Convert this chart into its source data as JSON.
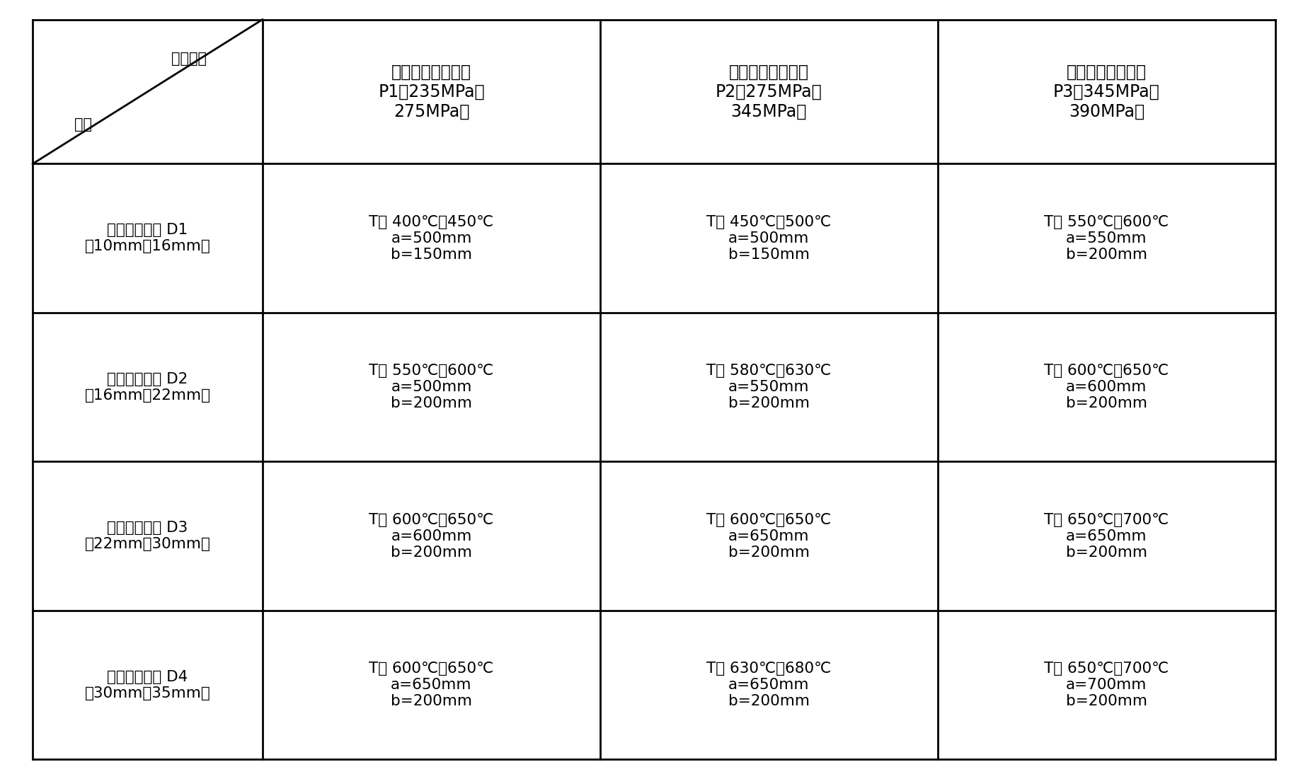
{
  "figsize": [
    18.48,
    11.01
  ],
  "dpi": 100,
  "bg_color": "#ffffff",
  "font_color": "#000000",
  "line_color": "#000000",
  "col_headers": [
    "第一屈服強度区间\nP1【235MPa，\n275MPa】",
    "第二屈服強度区间\nP2（275MPa，\n345MPa】",
    "第三屈服強度区间\nP3（345MPa，\n390MPa】"
  ],
  "row_headers": [
    "第一厚度区间 D1\n〆10mm，16mm】",
    "第二厚度区间 D2\n（16mm，22mm】",
    "第三厚度区间 D3\n（22mm，30mm】",
    "第四厚度区间 D4\n（30mm，35mm】"
  ],
  "diagonal_top_right": "屈服強度",
  "diagonal_bottom_left": "厚度",
  "cells": [
    [
      "T： 400℃～450℃\na=500mm\nb=150mm",
      "T： 450℃～500℃\na=500mm\nb=150mm",
      "T： 550℃～600℃\na=550mm\nb=200mm"
    ],
    [
      "T： 550℃～600℃\na=500mm\nb=200mm",
      "T： 580℃～630℃\na=550mm\nb=200mm",
      "T： 600℃～650℃\na=600mm\nb=200mm"
    ],
    [
      "T： 600℃～650℃\na=600mm\nb=200mm",
      "T： 600℃～650℃\na=650mm\nb=200mm",
      "T： 650℃～700℃\na=650mm\nb=200mm"
    ],
    [
      "T： 600℃～650℃\na=650mm\nb=200mm",
      "T： 630℃～680℃\na=650mm\nb=200mm",
      "T： 650℃～700℃\na=700mm\nb=200mm"
    ]
  ]
}
